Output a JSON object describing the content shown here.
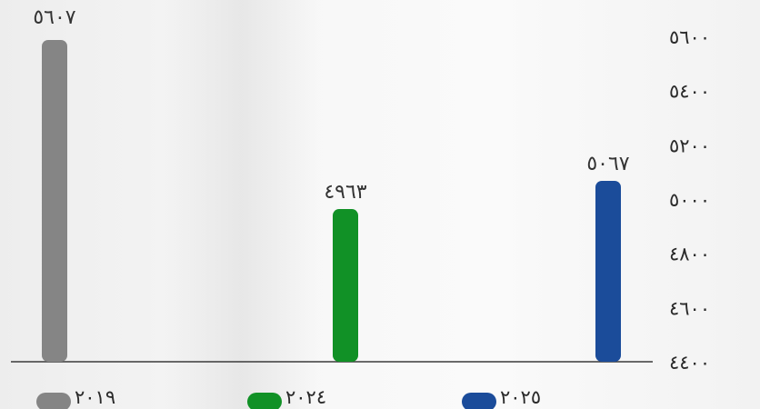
{
  "chart_data": {
    "type": "bar",
    "categories": [
      "٢٠١٩",
      "٢٠٢٤",
      "٢٠٢٥"
    ],
    "values": [
      5607,
      4963,
      5067
    ],
    "value_labels": [
      "٥٦٠٧",
      "٤٩٦٣",
      "٥٠٦٧"
    ],
    "colors": [
      "#858585",
      "#119126",
      "#1b4c9a"
    ],
    "ylim": [
      4400,
      5600
    ],
    "y_ticks": [
      4400,
      4600,
      4800,
      5000,
      5200,
      5400,
      5600
    ],
    "y_tick_labels": [
      "٤٤٠٠",
      "٤٦٠٠",
      "٤٨٠٠",
      "٥٠٠٠",
      "٥٢٠٠",
      "٥٤٠٠",
      "٥٦٠٠"
    ],
    "y_axis_side": "right",
    "legend_position": "bottom",
    "grid": false,
    "title": "",
    "xlabel": "",
    "ylabel": ""
  }
}
